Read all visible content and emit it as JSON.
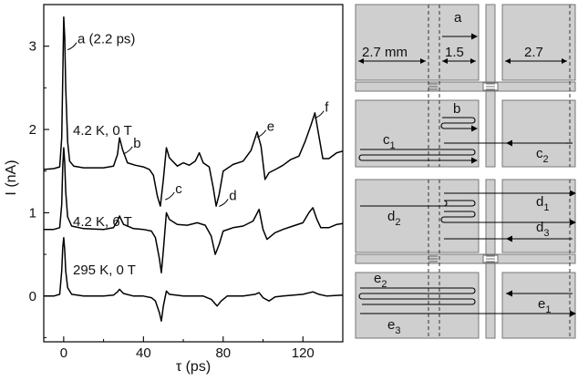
{
  "chart_data": {
    "type": "line",
    "xlabel": "τ (ps)",
    "ylabel": "I (nA)",
    "xlim": [
      -10,
      140
    ],
    "ylim": [
      -0.55,
      3.5
    ],
    "x_ticks": [
      0,
      40,
      80,
      120
    ],
    "y_ticks": [
      0,
      1,
      2,
      3
    ],
    "grid": false,
    "series": [
      {
        "name": "4.2 K, 0 T",
        "points": [
          [
            -10,
            1.52
          ],
          [
            -5,
            1.53
          ],
          [
            -2,
            1.55
          ],
          [
            -1,
            1.9
          ],
          [
            -0.5,
            2.6
          ],
          [
            0,
            3.35
          ],
          [
            0.5,
            3.1
          ],
          [
            1,
            2.5
          ],
          [
            2,
            1.85
          ],
          [
            3,
            1.62
          ],
          [
            5,
            1.56
          ],
          [
            10,
            1.54
          ],
          [
            20,
            1.54
          ],
          [
            25,
            1.56
          ],
          [
            27,
            1.7
          ],
          [
            28,
            1.9
          ],
          [
            29.5,
            1.76
          ],
          [
            32,
            1.6
          ],
          [
            36,
            1.57
          ],
          [
            40,
            1.55
          ],
          [
            43,
            1.52
          ],
          [
            45,
            1.45
          ],
          [
            47,
            1.2
          ],
          [
            48.5,
            1.08
          ],
          [
            50,
            1.4
          ],
          [
            51.5,
            1.78
          ],
          [
            53,
            1.66
          ],
          [
            57,
            1.56
          ],
          [
            60,
            1.6
          ],
          [
            63,
            1.57
          ],
          [
            66,
            1.62
          ],
          [
            68,
            1.72
          ],
          [
            70,
            1.6
          ],
          [
            73,
            1.55
          ],
          [
            75,
            1.3
          ],
          [
            76.5,
            1.08
          ],
          [
            78,
            1.22
          ],
          [
            80,
            1.5
          ],
          [
            85,
            1.58
          ],
          [
            90,
            1.62
          ],
          [
            94,
            1.75
          ],
          [
            97,
            1.97
          ],
          [
            99,
            1.8
          ],
          [
            101,
            1.4
          ],
          [
            103,
            1.48
          ],
          [
            107,
            1.53
          ],
          [
            110,
            1.57
          ],
          [
            114,
            1.64
          ],
          [
            118,
            1.68
          ],
          [
            121,
            1.85
          ],
          [
            124,
            2.05
          ],
          [
            126,
            2.2
          ],
          [
            128,
            1.92
          ],
          [
            130,
            1.65
          ],
          [
            133,
            1.65
          ],
          [
            137,
            1.72
          ],
          [
            140,
            1.74
          ]
        ]
      },
      {
        "name": "4.2 K, 6 T",
        "points": [
          [
            -10,
            0.8
          ],
          [
            -5,
            0.8
          ],
          [
            -2,
            0.82
          ],
          [
            -1,
            1.1
          ],
          [
            -0.5,
            1.55
          ],
          [
            0,
            1.78
          ],
          [
            0.5,
            1.6
          ],
          [
            1,
            1.25
          ],
          [
            2,
            0.95
          ],
          [
            4,
            0.84
          ],
          [
            10,
            0.81
          ],
          [
            20,
            0.8
          ],
          [
            25,
            0.82
          ],
          [
            27,
            0.9
          ],
          [
            28,
            0.96
          ],
          [
            30,
            0.86
          ],
          [
            35,
            0.81
          ],
          [
            40,
            0.8
          ],
          [
            44,
            0.78
          ],
          [
            46,
            0.7
          ],
          [
            48,
            0.45
          ],
          [
            49,
            0.28
          ],
          [
            50,
            0.55
          ],
          [
            51.5,
            1.0
          ],
          [
            53,
            0.92
          ],
          [
            57,
            0.86
          ],
          [
            62,
            0.85
          ],
          [
            67,
            0.88
          ],
          [
            71,
            0.85
          ],
          [
            74,
            0.72
          ],
          [
            76,
            0.5
          ],
          [
            78,
            0.62
          ],
          [
            80,
            0.78
          ],
          [
            85,
            0.82
          ],
          [
            90,
            0.84
          ],
          [
            95,
            0.9
          ],
          [
            98,
            1.04
          ],
          [
            100,
            0.8
          ],
          [
            102,
            0.68
          ],
          [
            106,
            0.76
          ],
          [
            110,
            0.8
          ],
          [
            115,
            0.84
          ],
          [
            120,
            0.88
          ],
          [
            123,
            1.0
          ],
          [
            125,
            1.06
          ],
          [
            127,
            0.92
          ],
          [
            129,
            0.82
          ],
          [
            133,
            0.82
          ],
          [
            137,
            0.86
          ],
          [
            140,
            0.87
          ]
        ]
      },
      {
        "name": "295 K, 0 T",
        "points": [
          [
            -10,
            0.0
          ],
          [
            -5,
            0.0
          ],
          [
            -2,
            0.02
          ],
          [
            -1,
            0.3
          ],
          [
            -0.5,
            0.58
          ],
          [
            0,
            0.7
          ],
          [
            0.5,
            0.55
          ],
          [
            1,
            0.3
          ],
          [
            2,
            0.1
          ],
          [
            4,
            0.02
          ],
          [
            10,
            0.0
          ],
          [
            20,
            0.0
          ],
          [
            25,
            0.01
          ],
          [
            27,
            0.05
          ],
          [
            28,
            0.08
          ],
          [
            30,
            0.03
          ],
          [
            35,
            0.0
          ],
          [
            40,
            0.0
          ],
          [
            44,
            -0.02
          ],
          [
            46,
            -0.06
          ],
          [
            48,
            -0.2
          ],
          [
            49,
            -0.3
          ],
          [
            50,
            -0.12
          ],
          [
            51.5,
            0.06
          ],
          [
            53,
            0.02
          ],
          [
            60,
            0.0
          ],
          [
            70,
            0.0
          ],
          [
            74,
            -0.04
          ],
          [
            77,
            -0.12
          ],
          [
            79,
            -0.06
          ],
          [
            82,
            0.0
          ],
          [
            90,
            0.0
          ],
          [
            96,
            0.02
          ],
          [
            98,
            0.04
          ],
          [
            100,
            -0.02
          ],
          [
            103,
            -0.06
          ],
          [
            106,
            -0.01
          ],
          [
            110,
            0.0
          ],
          [
            120,
            0.02
          ],
          [
            125,
            0.05
          ],
          [
            128,
            0.02
          ],
          [
            132,
            0.0
          ],
          [
            140,
            0.01
          ]
        ]
      }
    ],
    "annotations": [
      {
        "text": "a (2.2 ps)",
        "x": 1,
        "y": 3.0
      },
      {
        "text": "b",
        "x": 29,
        "y": 1.75
      },
      {
        "text": "c",
        "x": 50,
        "y": 1.2
      },
      {
        "text": "d",
        "x": 77,
        "y": 1.12
      },
      {
        "text": "e",
        "x": 96,
        "y": 1.95
      },
      {
        "text": "f",
        "x": 125,
        "y": 2.18
      }
    ],
    "curve_labels": [
      "4.2 K, 0 T",
      "4.2 K, 6 T",
      "295 K, 0 T"
    ]
  },
  "diagram": {
    "dimensions": [
      "2.7 mm",
      "1.5",
      "2.7"
    ],
    "path_labels_top": [
      {
        "letter": "a",
        "sub": ""
      },
      {
        "letter": "b",
        "sub": ""
      },
      {
        "letter": "c",
        "sub": "1"
      },
      {
        "letter": "c",
        "sub": "2"
      }
    ],
    "path_labels_bottom": [
      {
        "letter": "d",
        "sub": "1"
      },
      {
        "letter": "d",
        "sub": "2"
      },
      {
        "letter": "d",
        "sub": "3"
      },
      {
        "letter": "e",
        "sub": "2"
      },
      {
        "letter": "e",
        "sub": "1"
      },
      {
        "letter": "e",
        "sub": "3"
      }
    ]
  }
}
